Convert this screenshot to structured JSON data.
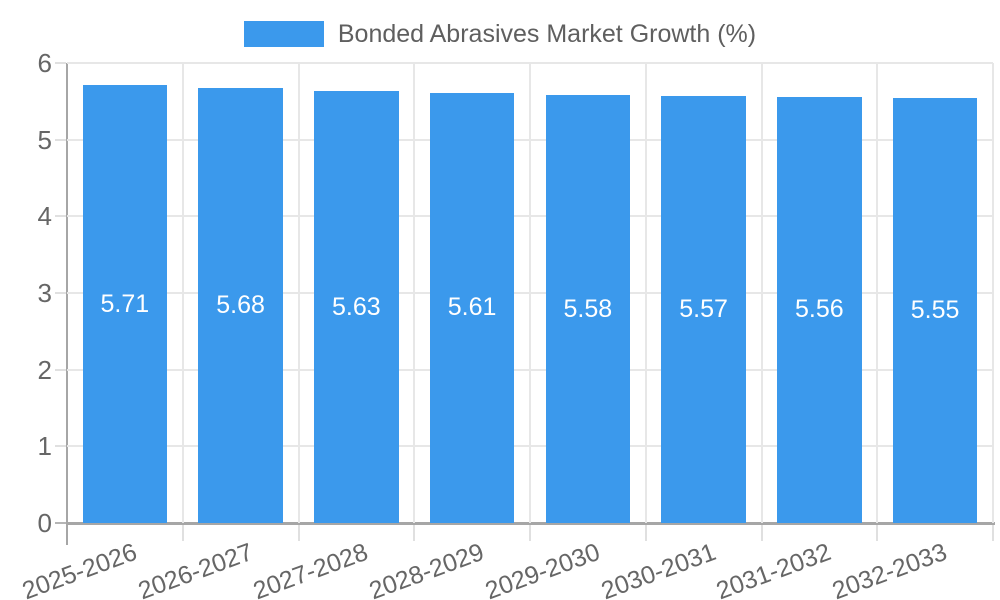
{
  "legend": {
    "label": "Bonded Abrasives Market Growth (%)",
    "swatch_color": "#3b99ec"
  },
  "chart_data": {
    "type": "bar",
    "title": "Bonded Abrasives Market Growth (%)",
    "categories": [
      "2025-2026",
      "2026-2027",
      "2027-2028",
      "2028-2029",
      "2029-2030",
      "2030-2031",
      "2031-2032",
      "2032-2033"
    ],
    "values": [
      5.71,
      5.68,
      5.63,
      5.61,
      5.58,
      5.57,
      5.56,
      5.55
    ],
    "value_labels": [
      "5.71",
      "5.68",
      "5.63",
      "5.61",
      "5.58",
      "5.57",
      "5.56",
      "5.55"
    ],
    "xlabel": "",
    "ylabel": "",
    "ylim": [
      0,
      6
    ],
    "yticks": [
      0,
      1,
      2,
      3,
      4,
      5,
      6
    ],
    "grid": true,
    "legend_position": "top",
    "bar_color": "#3b99ec",
    "value_label_color": "#ffffff"
  },
  "colors": {
    "background": "#ffffff",
    "grid": "#e7e7e7",
    "axis": "#a6a6a6",
    "tick_text": "#666666",
    "legend_text": "#5f5f5f"
  }
}
